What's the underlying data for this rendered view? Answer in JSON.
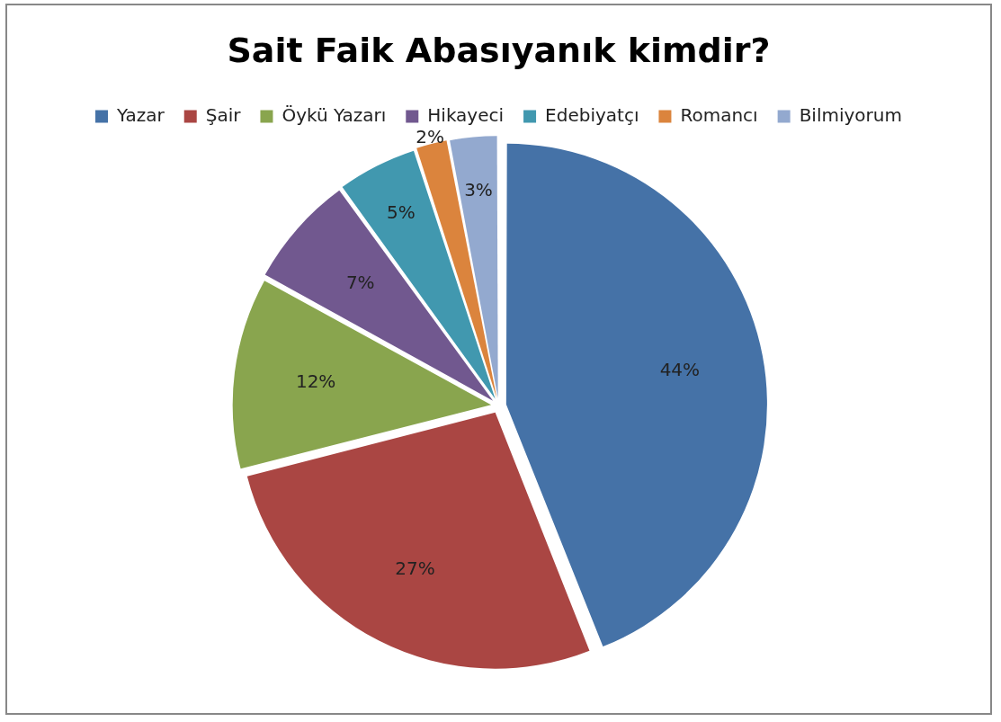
{
  "chart_data": {
    "type": "pie",
    "title": "Sait Faik Abasıyanık kimdir?",
    "categories": [
      "Yazar",
      "Şair",
      "Öykü Yazarı",
      "Hikayeci",
      "Edebiyatçı",
      "Romancı",
      "Bilmiyorum"
    ],
    "values": [
      44,
      27,
      12,
      7,
      5,
      2,
      3
    ],
    "colors": [
      "#4572a7",
      "#aa4643",
      "#89a54e",
      "#71588f",
      "#4198af",
      "#db843d",
      "#93a9cf"
    ],
    "value_labels": [
      "44%",
      "27%",
      "12%",
      "7%",
      "5%",
      "2%",
      "3%"
    ],
    "legend": "top"
  }
}
